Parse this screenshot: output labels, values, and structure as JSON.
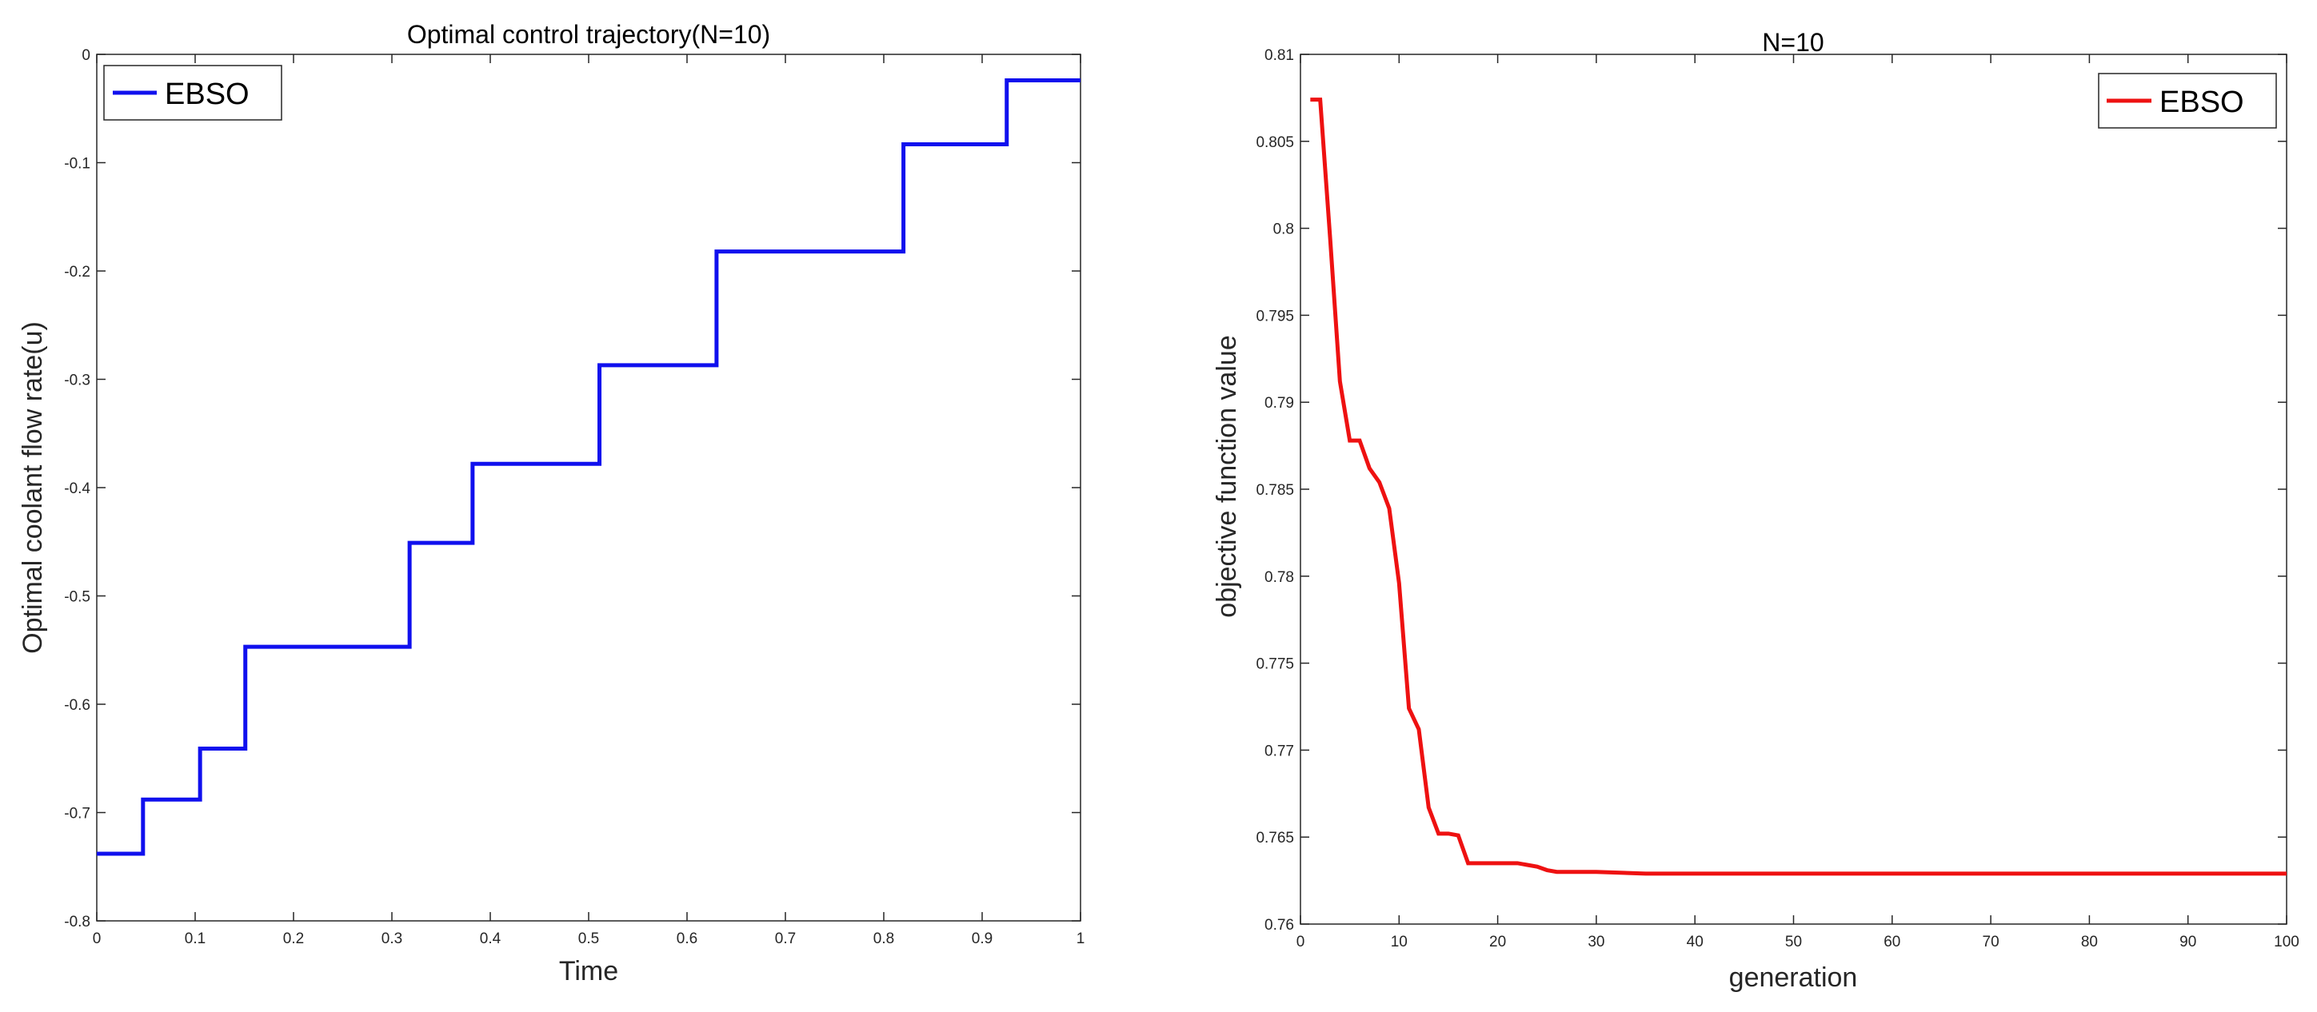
{
  "chart_data": [
    {
      "type": "line",
      "step": true,
      "title": "Optimal control trajectory(N=10)",
      "xlabel": "Time",
      "ylabel": "Optimal coolant flow rate(u)",
      "xlim": [
        0,
        1
      ],
      "ylim": [
        -0.8,
        0
      ],
      "xticks": [
        0,
        0.1,
        0.2,
        0.3,
        0.4,
        0.5,
        0.6,
        0.7,
        0.8,
        0.9,
        1
      ],
      "xtick_labels": [
        "0",
        "0.1",
        "0.2",
        "0.3",
        "0.4",
        "0.5",
        "0.6",
        "0.7",
        "0.8",
        "0.9",
        "1"
      ],
      "yticks": [
        0,
        -0.1,
        -0.2,
        -0.3,
        -0.4,
        -0.5,
        -0.6,
        -0.7,
        -0.8
      ],
      "ytick_labels": [
        "0",
        "-0.1",
        "-0.2",
        "-0.3",
        "-0.4",
        "-0.5",
        "-0.6",
        "-0.7",
        "-0.8"
      ],
      "grid": false,
      "legend_position": "top-left",
      "series": [
        {
          "name": "EBSO",
          "color": "#1010ee",
          "x": [
            0,
            0.047,
            0.105,
            0.151,
            0.318,
            0.382,
            0.511,
            0.63,
            0.82,
            0.925,
            1
          ],
          "y": [
            -0.738,
            -0.688,
            -0.641,
            -0.547,
            -0.451,
            -0.378,
            -0.287,
            -0.182,
            -0.083,
            -0.024,
            -0.024
          ]
        }
      ]
    },
    {
      "type": "line",
      "title": "N=10",
      "xlabel": "generation",
      "ylabel": "objective function value",
      "xlim": [
        0,
        100
      ],
      "ylim": [
        0.76,
        0.81
      ],
      "xticks": [
        0,
        10,
        20,
        30,
        40,
        50,
        60,
        70,
        80,
        90,
        100
      ],
      "xtick_labels": [
        "0",
        "10",
        "20",
        "30",
        "40",
        "50",
        "60",
        "70",
        "80",
        "90",
        "100"
      ],
      "yticks": [
        0.76,
        0.765,
        0.77,
        0.775,
        0.78,
        0.785,
        0.79,
        0.795,
        0.8,
        0.805,
        0.81
      ],
      "ytick_labels": [
        "0.76",
        "0.765",
        "0.77",
        "0.775",
        "0.78",
        "0.785",
        "0.79",
        "0.795",
        "0.8",
        "0.805",
        "0.81"
      ],
      "grid": false,
      "legend_position": "top-right",
      "series": [
        {
          "name": "EBSO",
          "color": "#ee1111",
          "x": [
            1,
            2,
            3,
            4,
            5,
            6,
            7,
            8,
            9,
            10,
            11,
            12,
            13,
            14,
            15,
            16,
            17,
            18,
            19,
            20,
            21,
            22,
            23,
            24,
            25,
            26,
            28,
            30,
            35,
            40,
            50,
            60,
            70,
            80,
            90,
            100
          ],
          "y": [
            0.8074,
            0.8074,
            0.7995,
            0.7912,
            0.7878,
            0.7878,
            0.7862,
            0.7854,
            0.7839,
            0.7796,
            0.7724,
            0.7712,
            0.7667,
            0.7652,
            0.7652,
            0.7651,
            0.7635,
            0.7635,
            0.7635,
            0.7635,
            0.7635,
            0.7635,
            0.7634,
            0.7633,
            0.7631,
            0.763,
            0.763,
            0.763,
            0.7629,
            0.7629,
            0.7629,
            0.7629,
            0.7629,
            0.7629,
            0.7629,
            0.7629
          ]
        }
      ]
    }
  ]
}
